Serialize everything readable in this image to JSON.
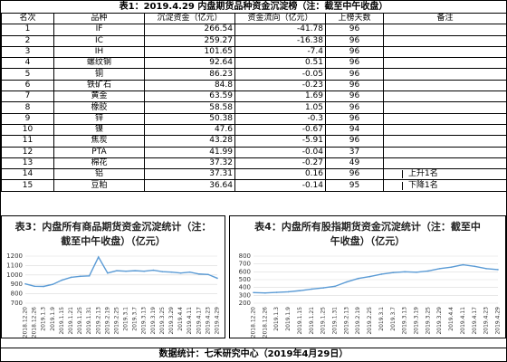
{
  "title": "表1：2019.4.29 内盘期货品种资金沉淀榜（注：截至中午收盘）",
  "table": {
    "headers": [
      "名次",
      "品种",
      "沉淀资金（亿元）",
      "资金流向（亿元）",
      "上榜天数",
      "备注"
    ],
    "rows": [
      {
        "rank": "1",
        "name": "IF",
        "fund": "266.54",
        "flow": "-41.78",
        "days": "96",
        "note": ""
      },
      {
        "rank": "2",
        "name": "IC",
        "fund": "259.27",
        "flow": "-16.38",
        "days": "96",
        "note": ""
      },
      {
        "rank": "3",
        "name": "IH",
        "fund": "101.65",
        "flow": "-7.4",
        "days": "96",
        "note": ""
      },
      {
        "rank": "4",
        "name": "螺纹钢",
        "fund": "92.64",
        "flow": "0.51",
        "days": "96",
        "note": ""
      },
      {
        "rank": "5",
        "name": "铜",
        "fund": "86.23",
        "flow": "-0.05",
        "days": "96",
        "note": ""
      },
      {
        "rank": "6",
        "name": "铁矿石",
        "fund": "84.8",
        "flow": "-0.23",
        "days": "96",
        "note": ""
      },
      {
        "rank": "7",
        "name": "黄金",
        "fund": "63.59",
        "flow": "1.69",
        "days": "96",
        "note": ""
      },
      {
        "rank": "8",
        "name": "橡胶",
        "fund": "58.58",
        "flow": "1.05",
        "days": "96",
        "note": ""
      },
      {
        "rank": "9",
        "name": "锌",
        "fund": "50.38",
        "flow": "-0.3",
        "days": "96",
        "note": ""
      },
      {
        "rank": "10",
        "name": "镍",
        "fund": "47.6",
        "flow": "-0.67",
        "days": "94",
        "note": ""
      },
      {
        "rank": "11",
        "name": "焦炭",
        "fund": "43.28",
        "flow": "-5.91",
        "days": "96",
        "note": ""
      },
      {
        "rank": "12",
        "name": "PTA",
        "fund": "41.99",
        "flow": "-0.04",
        "days": "37",
        "note": ""
      },
      {
        "rank": "13",
        "name": "棉花",
        "fund": "37.32",
        "flow": "-0.27",
        "days": "49",
        "note": ""
      },
      {
        "rank": "14",
        "name": "铝",
        "fund": "37.31",
        "flow": "0.16",
        "days": "96",
        "note": "上升1名"
      },
      {
        "rank": "15",
        "name": "豆粕",
        "fund": "36.64",
        "flow": "-0.14",
        "days": "95",
        "note": "下降1名"
      }
    ]
  },
  "chart_data": [
    {
      "type": "line",
      "title": "表3：内盘所有商品期货资金沉淀统计（注：截至中午收盘）（亿元）",
      "ylim": [
        700,
        1200
      ],
      "yticks": [
        700,
        800,
        900,
        1000,
        1100,
        1200
      ],
      "categories": [
        "2018.12.20",
        "2018.12.26",
        "2019.1.3",
        "2019.1.9",
        "2019.1.15",
        "2019.1.21",
        "2019.1.25",
        "2019.1.31",
        "2019.2.13",
        "2019.2.19",
        "2019.2.25",
        "2019.3.1",
        "2019.3.7",
        "2019.3.13",
        "2019.3.19",
        "2019.3.25",
        "2019.3.29",
        "2019.4.4",
        "2019.4.11",
        "2019.4.17",
        "2019.4.23",
        "2019.4.29"
      ],
      "series": [
        {
          "name": "",
          "values": [
            905,
            880,
            878,
            900,
            945,
            975,
            985,
            990,
            1190,
            1020,
            1045,
            1040,
            1045,
            1040,
            1050,
            1035,
            1030,
            1020,
            1030,
            1010,
            1005,
            965
          ]
        }
      ]
    },
    {
      "type": "line",
      "title": "表4：内盘所有股指期货资金沉淀统计（注：截至中午收盘）（亿元）",
      "ylim": [
        200,
        800
      ],
      "yticks": [
        200,
        300,
        400,
        500,
        600,
        700,
        800
      ],
      "categories": [
        "2018.12.20",
        "2018.12.26",
        "2019.1.3",
        "2019.1.9",
        "2019.1.15",
        "2019.1.21",
        "2019.1.25",
        "2019.1.31",
        "2019.2.13",
        "2019.2.19",
        "2019.2.25",
        "2019.3.1",
        "2019.3.7",
        "2019.3.13",
        "2019.3.19",
        "2019.3.25",
        "2019.3.29",
        "2019.4.4",
        "2019.4.11",
        "2019.4.17",
        "2019.4.23",
        "2019.4.29"
      ],
      "series": [
        {
          "name": "",
          "values": [
            335,
            330,
            338,
            345,
            360,
            380,
            395,
            415,
            470,
            515,
            540,
            570,
            590,
            600,
            595,
            610,
            640,
            660,
            690,
            670,
            640,
            628
          ]
        }
      ]
    }
  ],
  "footer": "数据统计：七禾研究中心（2019年4月29日）",
  "colors": {
    "line": "#5b9bd5",
    "grid": "#d9d9d9"
  }
}
